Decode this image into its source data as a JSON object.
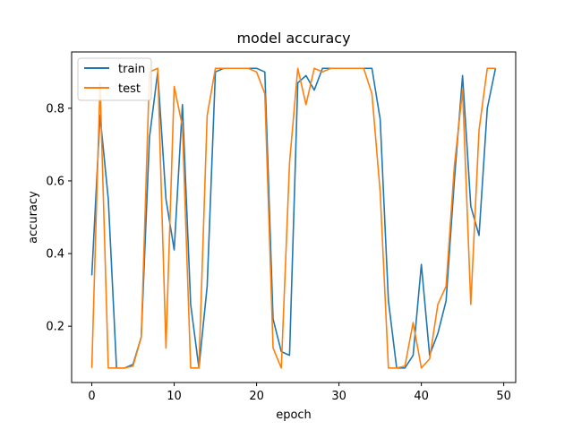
{
  "chart_data": {
    "type": "line",
    "title": "model accuracy",
    "xlabel": "epoch",
    "ylabel": "accuracy",
    "xlim": [
      -2.45,
      51.45
    ],
    "ylim": [
      0.045,
      0.955
    ],
    "xticks": [
      0,
      10,
      20,
      30,
      40,
      50
    ],
    "yticks": [
      0.2,
      0.4,
      0.6,
      0.8
    ],
    "grid": false,
    "legend_position": "top-left",
    "x": [
      0,
      1,
      2,
      3,
      4,
      5,
      6,
      7,
      8,
      9,
      10,
      11,
      12,
      13,
      14,
      15,
      16,
      17,
      18,
      19,
      20,
      21,
      22,
      23,
      24,
      25,
      26,
      27,
      28,
      29,
      30,
      31,
      32,
      33,
      34,
      35,
      36,
      37,
      38,
      39,
      40,
      41,
      42,
      43,
      44,
      45,
      46,
      47,
      48,
      49
    ],
    "series": [
      {
        "name": "train",
        "color": "#1f77b4",
        "values": [
          0.34,
          0.78,
          0.55,
          0.085,
          0.085,
          0.095,
          0.17,
          0.72,
          0.9,
          0.55,
          0.41,
          0.81,
          0.26,
          0.085,
          0.31,
          0.9,
          0.91,
          0.91,
          0.91,
          0.91,
          0.91,
          0.9,
          0.22,
          0.13,
          0.12,
          0.87,
          0.89,
          0.85,
          0.91,
          0.91,
          0.91,
          0.91,
          0.91,
          0.91,
          0.91,
          0.77,
          0.27,
          0.085,
          0.085,
          0.12,
          0.37,
          0.12,
          0.18,
          0.27,
          0.6,
          0.89,
          0.53,
          0.45,
          0.8,
          0.91
        ]
      },
      {
        "name": "test",
        "color": "#ff7f0e",
        "values": [
          0.085,
          0.87,
          0.085,
          0.085,
          0.085,
          0.09,
          0.17,
          0.9,
          0.91,
          0.14,
          0.86,
          0.75,
          0.085,
          0.085,
          0.78,
          0.91,
          0.91,
          0.91,
          0.91,
          0.91,
          0.9,
          0.84,
          0.14,
          0.085,
          0.65,
          0.91,
          0.81,
          0.91,
          0.9,
          0.91,
          0.91,
          0.91,
          0.91,
          0.91,
          0.84,
          0.57,
          0.085,
          0.085,
          0.09,
          0.21,
          0.085,
          0.11,
          0.26,
          0.31,
          0.64,
          0.85,
          0.26,
          0.74,
          0.91,
          0.91
        ]
      }
    ]
  }
}
